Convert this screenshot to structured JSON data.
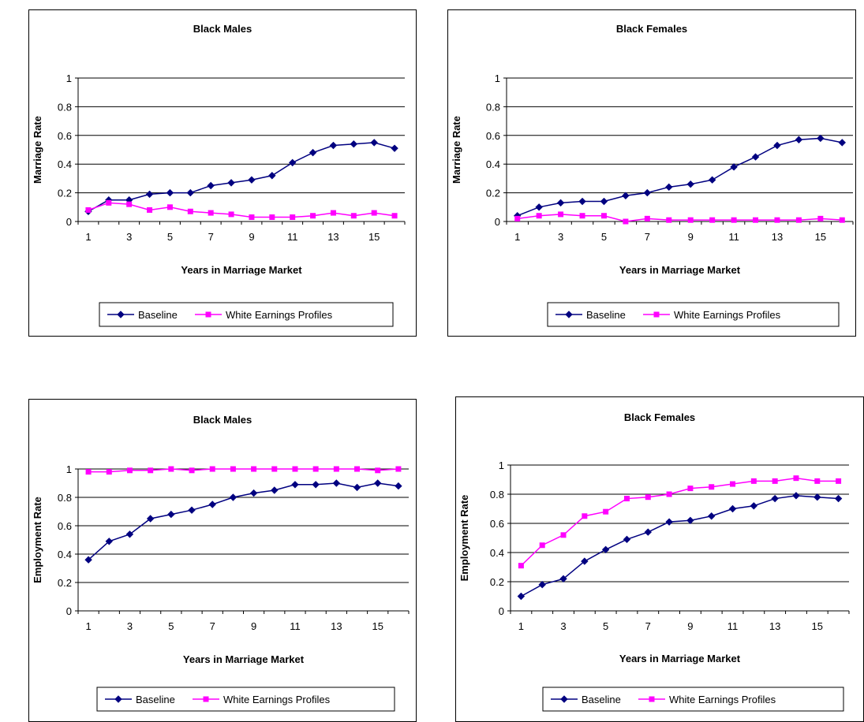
{
  "chart_data": [
    {
      "type": "line",
      "title": "Black Males",
      "xlabel": "Years in Marriage Market",
      "ylabel": "Marriage Rate",
      "x": [
        1,
        2,
        3,
        4,
        5,
        6,
        7,
        8,
        9,
        10,
        11,
        12,
        13,
        14,
        15,
        16
      ],
      "x_ticks": [
        "1",
        "3",
        "5",
        "7",
        "9",
        "11",
        "13",
        "15"
      ],
      "y_ticks": [
        "0",
        "0.2",
        "0.4",
        "0.6",
        "0.8",
        "1"
      ],
      "ylim": [
        0,
        1
      ],
      "grid": "horizontal",
      "legend_position": "bottom",
      "series": [
        {
          "name": "Baseline",
          "color": "#000080",
          "marker": "diamond",
          "values": [
            0.07,
            0.15,
            0.15,
            0.19,
            0.2,
            0.2,
            0.25,
            0.27,
            0.29,
            0.32,
            0.41,
            0.48,
            0.53,
            0.54,
            0.55,
            0.51
          ]
        },
        {
          "name": "White Earnings Profiles",
          "color": "#FF00FF",
          "marker": "square",
          "values": [
            0.08,
            0.13,
            0.12,
            0.08,
            0.1,
            0.07,
            0.06,
            0.05,
            0.03,
            0.03,
            0.03,
            0.04,
            0.06,
            0.04,
            0.06,
            0.04
          ]
        }
      ]
    },
    {
      "type": "line",
      "title": "Black Females",
      "xlabel": "Years in Marriage Market",
      "ylabel": "Marriage Rate",
      "x": [
        1,
        2,
        3,
        4,
        5,
        6,
        7,
        8,
        9,
        10,
        11,
        12,
        13,
        14,
        15,
        16
      ],
      "x_ticks": [
        "1",
        "3",
        "5",
        "7",
        "9",
        "11",
        "13",
        "15"
      ],
      "y_ticks": [
        "0",
        "0.2",
        "0.4",
        "0.6",
        "0.8",
        "1"
      ],
      "ylim": [
        0,
        1
      ],
      "grid": "horizontal",
      "legend_position": "bottom",
      "series": [
        {
          "name": "Baseline",
          "color": "#000080",
          "marker": "diamond",
          "values": [
            0.04,
            0.1,
            0.13,
            0.14,
            0.14,
            0.18,
            0.2,
            0.24,
            0.26,
            0.29,
            0.38,
            0.45,
            0.53,
            0.57,
            0.58,
            0.55
          ]
        },
        {
          "name": "White Earnings Profiles",
          "color": "#FF00FF",
          "marker": "square",
          "values": [
            0.02,
            0.04,
            0.05,
            0.04,
            0.04,
            0.0,
            0.02,
            0.01,
            0.01,
            0.01,
            0.01,
            0.01,
            0.01,
            0.01,
            0.02,
            0.01
          ]
        }
      ]
    },
    {
      "type": "line",
      "title": "Black Males",
      "xlabel": "Years in Marriage Market",
      "ylabel": "Employment Rate",
      "x": [
        1,
        2,
        3,
        4,
        5,
        6,
        7,
        8,
        9,
        10,
        11,
        12,
        13,
        14,
        15,
        16
      ],
      "x_ticks": [
        "1",
        "3",
        "5",
        "7",
        "9",
        "11",
        "13",
        "15"
      ],
      "y_ticks": [
        "0",
        "0.2",
        "0.4",
        "0.6",
        "0.8",
        "1"
      ],
      "ylim": [
        0,
        1
      ],
      "grid": "horizontal",
      "legend_position": "bottom",
      "series": [
        {
          "name": "Baseline",
          "color": "#000080",
          "marker": "diamond",
          "values": [
            0.36,
            0.49,
            0.54,
            0.65,
            0.68,
            0.71,
            0.75,
            0.8,
            0.83,
            0.85,
            0.89,
            0.89,
            0.9,
            0.87,
            0.9,
            0.88
          ]
        },
        {
          "name": "White Earnings Profiles",
          "color": "#FF00FF",
          "marker": "square",
          "values": [
            0.98,
            0.98,
            0.99,
            0.99,
            1.0,
            0.99,
            1.0,
            1.0,
            1.0,
            1.0,
            1.0,
            1.0,
            1.0,
            1.0,
            0.99,
            1.0
          ]
        }
      ]
    },
    {
      "type": "line",
      "title": "Black Females",
      "xlabel": "Years in Marriage Market",
      "ylabel": "Employment Rate",
      "x": [
        1,
        2,
        3,
        4,
        5,
        6,
        7,
        8,
        9,
        10,
        11,
        12,
        13,
        14,
        15,
        16
      ],
      "x_ticks": [
        "1",
        "3",
        "5",
        "7",
        "9",
        "11",
        "13",
        "15"
      ],
      "y_ticks": [
        "0",
        "0.2",
        "0.4",
        "0.6",
        "0.8",
        "1"
      ],
      "ylim": [
        0,
        1
      ],
      "grid": "horizontal",
      "legend_position": "bottom",
      "series": [
        {
          "name": "Baseline",
          "color": "#000080",
          "marker": "diamond",
          "values": [
            0.1,
            0.18,
            0.22,
            0.34,
            0.42,
            0.49,
            0.54,
            0.61,
            0.62,
            0.65,
            0.7,
            0.72,
            0.77,
            0.79,
            0.78,
            0.77
          ]
        },
        {
          "name": "White Earnings Profiles",
          "color": "#FF00FF",
          "marker": "square",
          "values": [
            0.31,
            0.45,
            0.52,
            0.65,
            0.68,
            0.77,
            0.78,
            0.8,
            0.84,
            0.85,
            0.87,
            0.89,
            0.89,
            0.91,
            0.89,
            0.89
          ]
        }
      ]
    }
  ]
}
